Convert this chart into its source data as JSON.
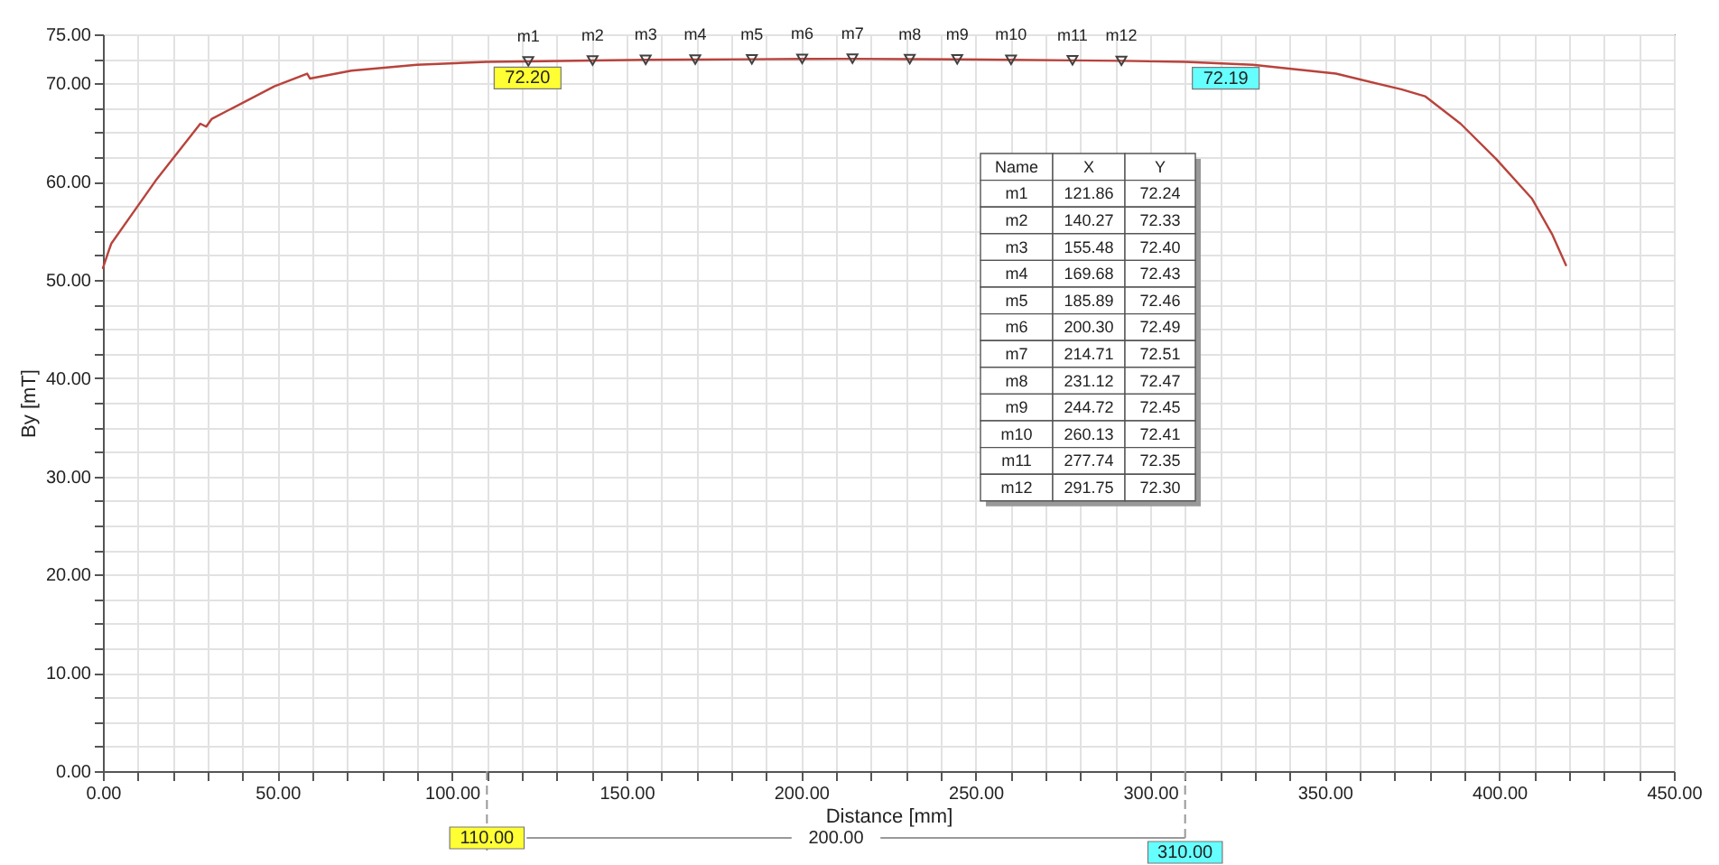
{
  "chart_data": {
    "type": "line",
    "xlabel": "Distance [mm]",
    "ylabel": "By [mT]",
    "xlim": [
      0,
      450
    ],
    "ylim": [
      0,
      75
    ],
    "xticks": [
      {
        "value": 0,
        "label": "0.00"
      },
      {
        "value": 10,
        "label": null
      },
      {
        "value": 20,
        "label": null
      },
      {
        "value": 30,
        "label": null
      },
      {
        "value": 40,
        "label": null
      },
      {
        "value": 50,
        "label": "50.00"
      },
      {
        "value": 60,
        "label": null
      },
      {
        "value": 70,
        "label": null
      },
      {
        "value": 80,
        "label": null
      },
      {
        "value": 90,
        "label": null
      },
      {
        "value": 100,
        "label": "100.00"
      },
      {
        "value": 110,
        "label": null
      },
      {
        "value": 120,
        "label": null
      },
      {
        "value": 130,
        "label": null
      },
      {
        "value": 140,
        "label": null
      },
      {
        "value": 150,
        "label": "150.00"
      },
      {
        "value": 160,
        "label": null
      },
      {
        "value": 170,
        "label": null
      },
      {
        "value": 180,
        "label": null
      },
      {
        "value": 190,
        "label": null
      },
      {
        "value": 200,
        "label": "200.00"
      },
      {
        "value": 210,
        "label": null
      },
      {
        "value": 220,
        "label": null
      },
      {
        "value": 230,
        "label": null
      },
      {
        "value": 240,
        "label": null
      },
      {
        "value": 250,
        "label": "250.00"
      },
      {
        "value": 260,
        "label": null
      },
      {
        "value": 270,
        "label": null
      },
      {
        "value": 280,
        "label": null
      },
      {
        "value": 290,
        "label": null
      },
      {
        "value": 300,
        "label": "300.00"
      },
      {
        "value": 310,
        "label": null
      },
      {
        "value": 320,
        "label": null
      },
      {
        "value": 330,
        "label": null
      },
      {
        "value": 340,
        "label": null
      },
      {
        "value": 350,
        "label": "350.00"
      },
      {
        "value": 360,
        "label": null
      },
      {
        "value": 370,
        "label": null
      },
      {
        "value": 380,
        "label": null
      },
      {
        "value": 390,
        "label": null
      },
      {
        "value": 400,
        "label": "400.00"
      },
      {
        "value": 410,
        "label": null
      },
      {
        "value": 420,
        "label": null
      },
      {
        "value": 430,
        "label": null
      },
      {
        "value": 440,
        "label": null
      },
      {
        "value": 450,
        "label": "450.00"
      }
    ],
    "yticks": [
      {
        "value": 0,
        "label": "0.00"
      },
      {
        "value": 2.5,
        "label": null
      },
      {
        "value": 5,
        "label": null
      },
      {
        "value": 7.5,
        "label": null
      },
      {
        "value": 10,
        "label": "10.00"
      },
      {
        "value": 12.5,
        "label": null
      },
      {
        "value": 15,
        "label": null
      },
      {
        "value": 17.5,
        "label": null
      },
      {
        "value": 20,
        "label": "20.00"
      },
      {
        "value": 22.5,
        "label": null
      },
      {
        "value": 25,
        "label": null
      },
      {
        "value": 27.5,
        "label": null
      },
      {
        "value": 30,
        "label": "30.00"
      },
      {
        "value": 32.5,
        "label": null
      },
      {
        "value": 35,
        "label": null
      },
      {
        "value": 37.5,
        "label": null
      },
      {
        "value": 40,
        "label": "40.00"
      },
      {
        "value": 42.5,
        "label": null
      },
      {
        "value": 45,
        "label": null
      },
      {
        "value": 47.5,
        "label": null
      },
      {
        "value": 50,
        "label": "50.00"
      },
      {
        "value": 52.5,
        "label": null
      },
      {
        "value": 55,
        "label": null
      },
      {
        "value": 57.5,
        "label": null
      },
      {
        "value": 60,
        "label": "60.00"
      },
      {
        "value": 62.5,
        "label": null
      },
      {
        "value": 65,
        "label": null
      },
      {
        "value": 67.5,
        "label": null
      },
      {
        "value": 70,
        "label": "70.00"
      },
      {
        "value": 72.5,
        "label": null
      },
      {
        "value": 75,
        "label": "75.00"
      }
    ],
    "grid": true,
    "series": [
      {
        "type": "line",
        "color": "#b8433c",
        "x": [
          0,
          1.5,
          2.4,
          15.1,
          27.9,
          29.6,
          31.2,
          49.1,
          58.5,
          59.3,
          71.2,
          89.9,
          110,
          121.86,
          140.27,
          155.48,
          169.68,
          185.89,
          200.3,
          214.71,
          231.12,
          244.72,
          260.13,
          277.74,
          291.75,
          310,
          329.4,
          353.2,
          371.9,
          378.7,
          388.9,
          399.1,
          409.3,
          415.2,
          419.1
        ],
        "values": [
          51.2,
          52.8,
          53.7,
          60.1,
          65.9,
          65.6,
          66.4,
          69.7,
          71.0,
          70.5,
          71.3,
          71.9,
          72.2,
          72.24,
          72.33,
          72.4,
          72.43,
          72.46,
          72.49,
          72.51,
          72.47,
          72.45,
          72.41,
          72.35,
          72.3,
          72.19,
          71.9,
          71.0,
          69.4,
          68.7,
          65.9,
          62.3,
          58.3,
          54.6,
          51.5
        ]
      },
      {
        "type": "scatter",
        "marker": "triangle",
        "color": "#404040",
        "x": [
          121.86,
          140.27,
          155.48,
          169.68,
          185.89,
          200.3,
          214.71,
          231.12,
          244.72,
          260.13,
          277.74,
          291.75
        ],
        "values": [
          72.24,
          72.33,
          72.4,
          72.43,
          72.46,
          72.49,
          72.51,
          72.47,
          72.45,
          72.41,
          72.35,
          72.3
        ]
      }
    ],
    "ref_lines": [
      {
        "axis": "x",
        "value": 110,
        "label": "110.00",
        "color": "#999999",
        "line_style": "dashed"
      },
      {
        "axis": "x",
        "value": 310,
        "label": "310.00",
        "color": "#999999",
        "line_style": "dashed"
      }
    ],
    "annotations": [
      "200.00",
      "Name",
      "X",
      "Y",
      "m1",
      "121.86",
      "72.24",
      "m2",
      "140.27",
      "72.33",
      "m3",
      "155.48",
      "72.40",
      "m4",
      "169.68",
      "72.43",
      "m5",
      "185.89",
      "72.46",
      "m6",
      "200.30",
      "72.49",
      "m7",
      "214.71",
      "72.51",
      "m8",
      "231.12",
      "72.47",
      "m9",
      "244.72",
      "72.45",
      "m10",
      "260.13",
      "72.41",
      "m11",
      "277.74",
      "72.35",
      "m12",
      "291.75",
      "72.30",
      {
        "text": "72.20",
        "x": 110,
        "y": 72.2
      },
      {
        "text": "72.19",
        "x": 310,
        "y": 72.19
      },
      {
        "text": "m1",
        "x": 121.86,
        "y": 72.24
      },
      {
        "text": "m2",
        "x": 140.27,
        "y": 72.33
      },
      {
        "text": "m3",
        "x": 155.48,
        "y": 72.4
      },
      {
        "text": "m4",
        "x": 169.68,
        "y": 72.43
      },
      {
        "text": "m5",
        "x": 185.89,
        "y": 72.46
      },
      {
        "text": "m6",
        "x": 200.3,
        "y": 72.49
      },
      {
        "text": "m7",
        "x": 214.71,
        "y": 72.51
      },
      {
        "text": "m8",
        "x": 231.12,
        "y": 72.47
      },
      {
        "text": "m9",
        "x": 244.72,
        "y": 72.45
      },
      {
        "text": "m10",
        "x": 260.13,
        "y": 72.41
      },
      {
        "text": "m11",
        "x": 277.74,
        "y": 72.35
      },
      {
        "text": "m12",
        "x": 291.75,
        "y": 72.3
      }
    ]
  }
}
